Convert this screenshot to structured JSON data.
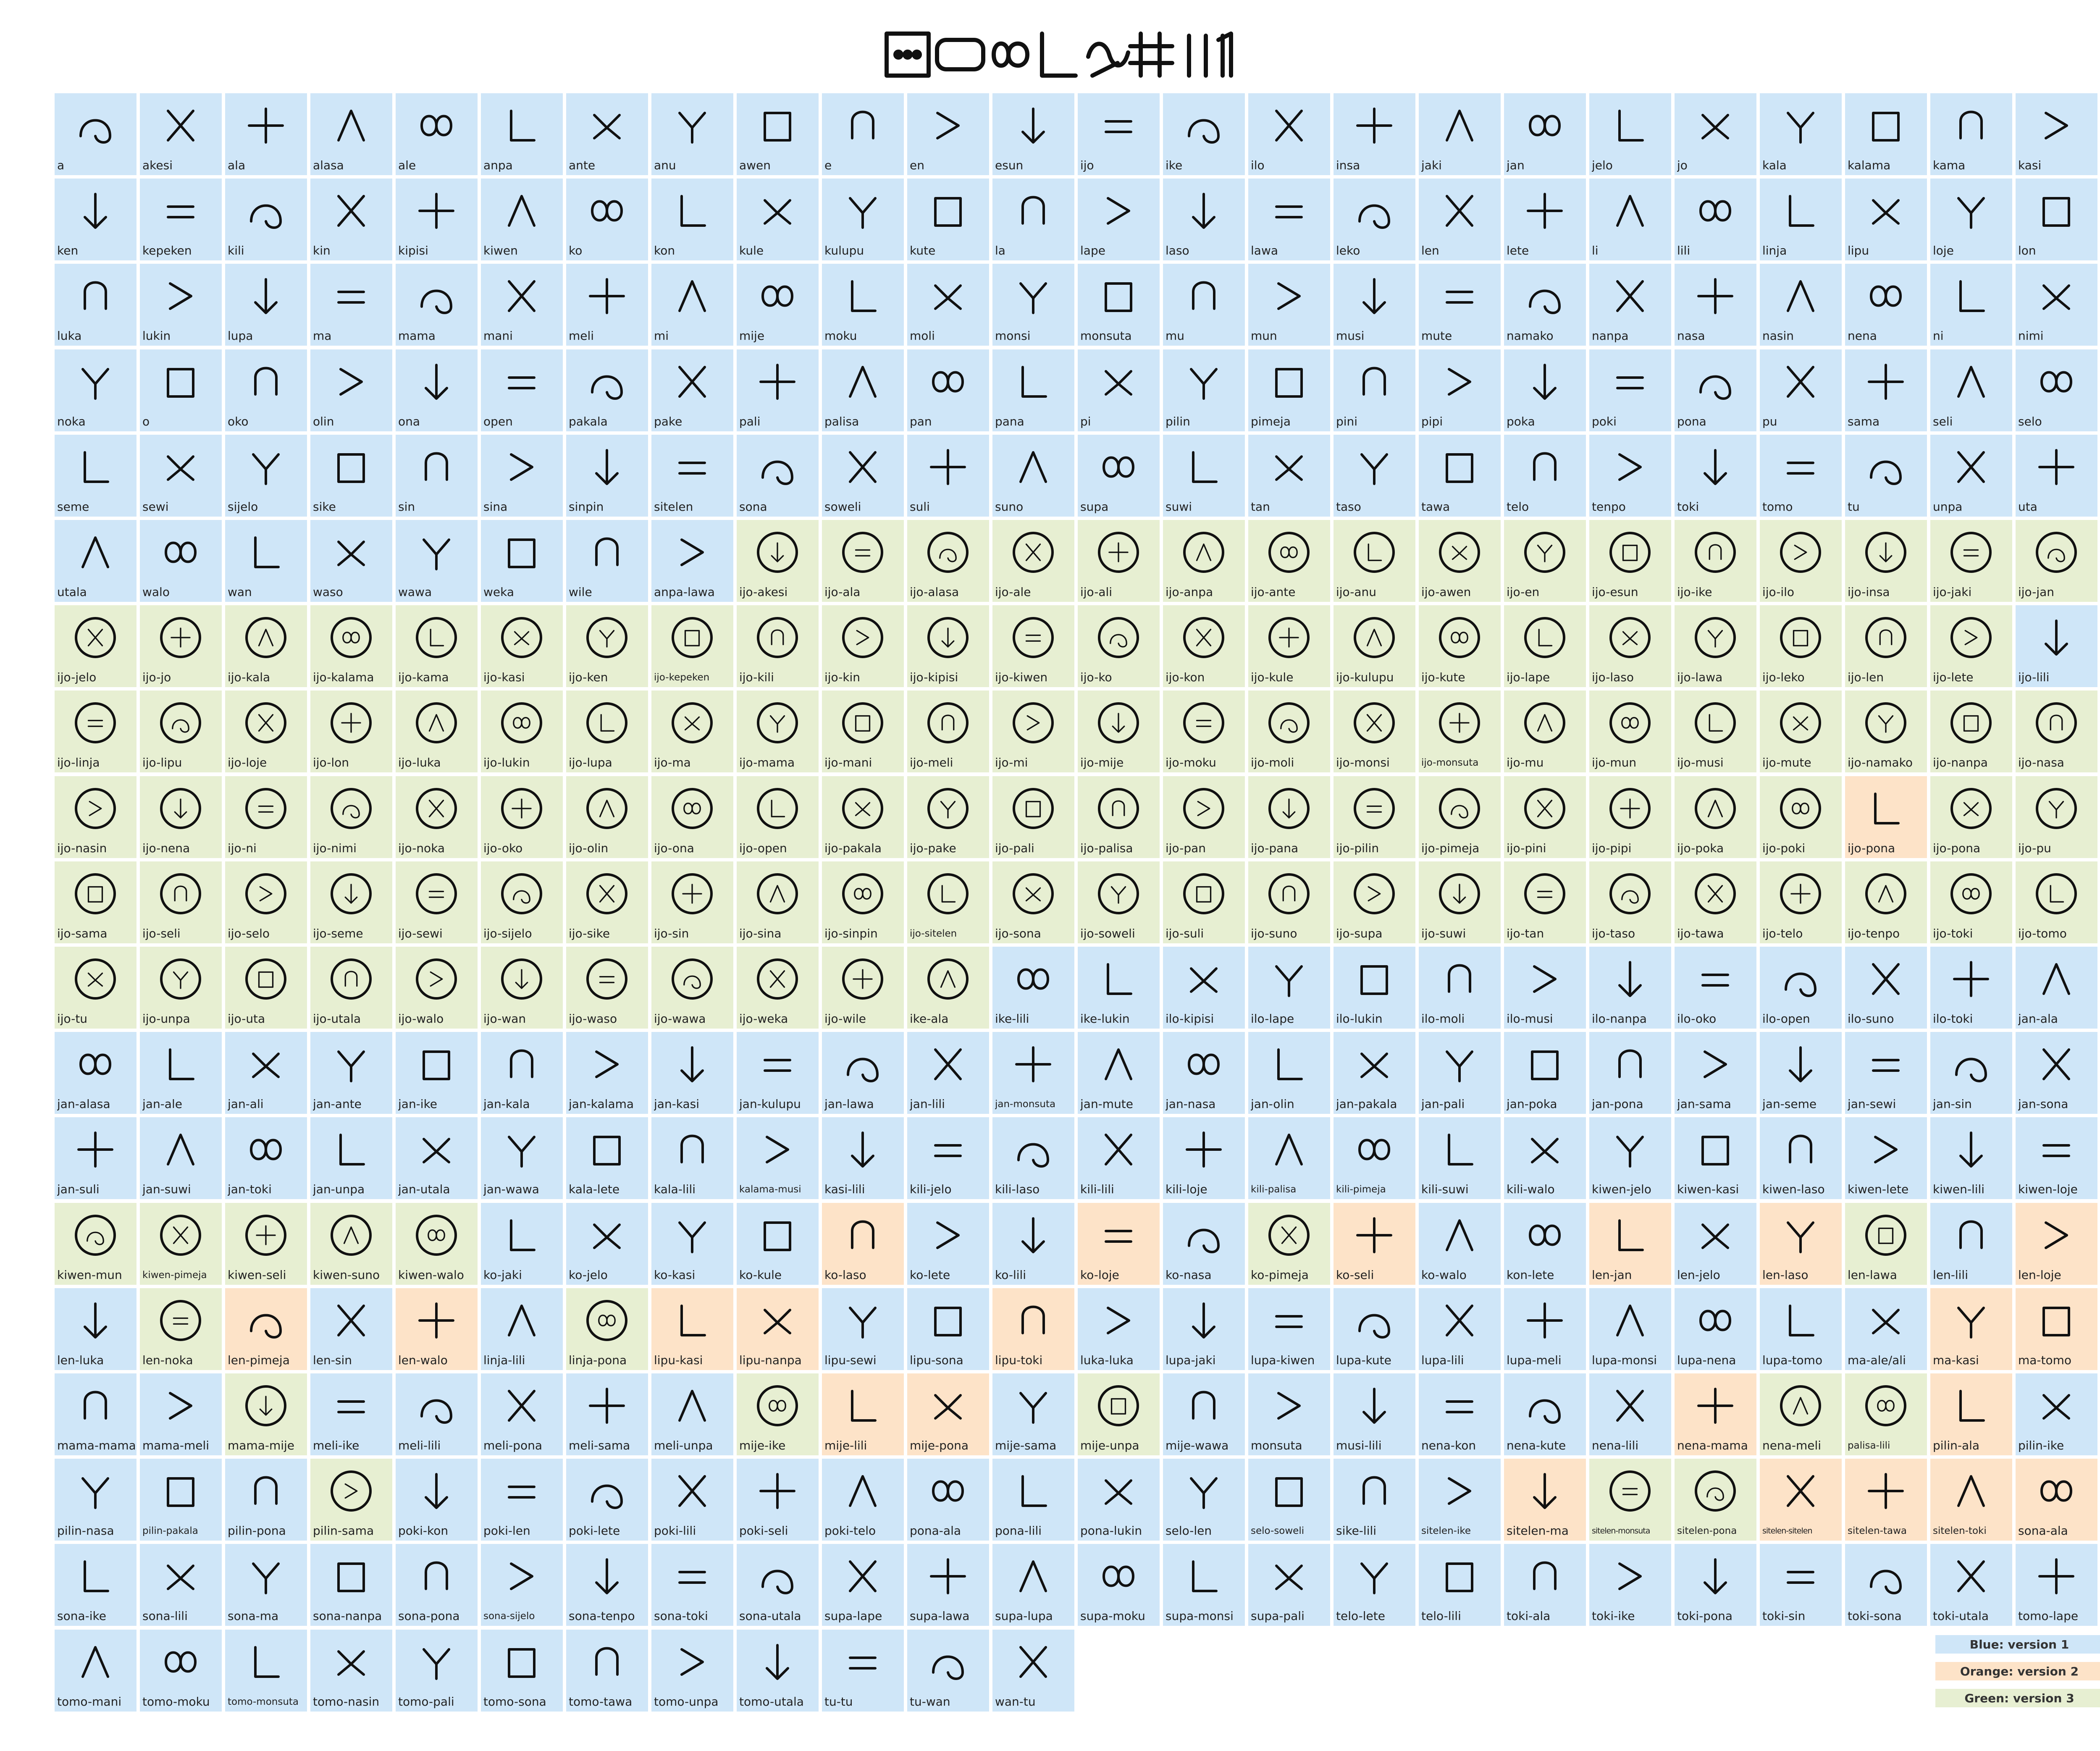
{
  "title_glyph_name": "toki-pona-title-glyphs",
  "colors": {
    "v1": "#cfe6f8",
    "v2": "#fde3c8",
    "v3": "#e7efd2"
  },
  "legend": {
    "blue": "Blue: version 1",
    "orange": "Orange: version 2",
    "green": "Green: version 3"
  },
  "rows": [
    [
      "a",
      "akesi",
      "ala",
      "alasa",
      "ale",
      "anpa",
      "ante",
      "anu",
      "awen",
      "e",
      "en",
      "esun",
      "ijo",
      "ike",
      "ilo",
      "insa",
      "jaki",
      "jan",
      "jelo",
      "jo",
      "kala",
      "kalama",
      "kama",
      "kasi"
    ],
    [
      "ken",
      "kepeken",
      "kili",
      "kin",
      "kipisi",
      "kiwen",
      "ko",
      "kon",
      "kule",
      "kulupu",
      "kute",
      "la",
      "lape",
      "laso",
      "lawa",
      "leko",
      "len",
      "lete",
      "li",
      "lili",
      "linja",
      "lipu",
      "loje",
      "lon"
    ],
    [
      "luka",
      "lukin",
      "lupa",
      "ma",
      "mama",
      "mani",
      "meli",
      "mi",
      "mije",
      "moku",
      "moli",
      "monsi",
      "monsuta",
      "mu",
      "mun",
      "musi",
      "mute",
      "namako",
      "nanpa",
      "nasa",
      "nasin",
      "nena",
      "ni",
      "nimi"
    ],
    [
      "noka",
      "o",
      "oko",
      "olin",
      "ona",
      "open",
      "pakala",
      "pake",
      "pali",
      "palisa",
      "pan",
      "pana",
      "pi",
      "pilin",
      "pimeja",
      "pini",
      "pipi",
      "poka",
      "poki",
      "pona",
      "pu",
      "sama",
      "seli",
      "selo"
    ],
    [
      "seme",
      "sewi",
      "sijelo",
      "sike",
      "sin",
      "sina",
      "sinpin",
      "sitelen",
      "sona",
      "soweli",
      "suli",
      "suno",
      "supa",
      "suwi",
      "tan",
      "taso",
      "tawa",
      "telo",
      "tenpo",
      "toki",
      "tomo",
      "tu",
      "unpa",
      "uta"
    ],
    [
      "utala",
      "walo",
      "wan",
      "waso",
      "wawa",
      "weka",
      "wile",
      "anpa-lawa",
      "ijo-akesi",
      "ijo-ala",
      "ijo-alasa",
      "ijo-ale",
      "ijo-ali",
      "ijo-anpa",
      "ijo-ante",
      "ijo-anu",
      "ijo-awen",
      "ijo-en",
      "ijo-esun",
      "ijo-ike",
      "ijo-ilo",
      "ijo-insa",
      "ijo-jaki",
      "ijo-jan"
    ],
    [
      "ijo-jelo",
      "ijo-jo",
      "ijo-kala",
      "ijo-kalama",
      "ijo-kama",
      "ijo-kasi",
      "ijo-ken",
      "ijo-kepeken",
      "ijo-kili",
      "ijo-kin",
      "ijo-kipisi",
      "ijo-kiwen",
      "ijo-ko",
      "ijo-kon",
      "ijo-kule",
      "ijo-kulupu",
      "ijo-kute",
      "ijo-lape",
      "ijo-laso",
      "ijo-lawa",
      "ijo-leko",
      "ijo-len",
      "ijo-lete",
      "ijo-lili"
    ],
    [
      "ijo-linja",
      "ijo-lipu",
      "ijo-loje",
      "ijo-lon",
      "ijo-luka",
      "ijo-lukin",
      "ijo-lupa",
      "ijo-ma",
      "ijo-mama",
      "ijo-mani",
      "ijo-meli",
      "ijo-mi",
      "ijo-mije",
      "ijo-moku",
      "ijo-moli",
      "ijo-monsi",
      "ijo-monsuta",
      "ijo-mu",
      "ijo-mun",
      "ijo-musi",
      "ijo-mute",
      "ijo-namako",
      "ijo-nanpa",
      "ijo-nasa"
    ],
    [
      "ijo-nasin",
      "ijo-nena",
      "ijo-ni",
      "ijo-nimi",
      "ijo-noka",
      "ijo-oko",
      "ijo-olin",
      "ijo-ona",
      "ijo-open",
      "ijo-pakala",
      "ijo-pake",
      "ijo-pali",
      "ijo-palisa",
      "ijo-pan",
      "ijo-pana",
      "ijo-pilin",
      "ijo-pimeja",
      "ijo-pini",
      "ijo-pipi",
      "ijo-poka",
      "ijo-poki",
      "ijo-pona",
      "ijo-pona",
      "ijo-pu"
    ],
    [
      "ijo-sama",
      "ijo-seli",
      "ijo-selo",
      "ijo-seme",
      "ijo-sewi",
      "ijo-sijelo",
      "ijo-sike",
      "ijo-sin",
      "ijo-sina",
      "ijo-sinpin",
      "ijo-sitelen",
      "ijo-sona",
      "ijo-soweli",
      "ijo-suli",
      "ijo-suno",
      "ijo-supa",
      "ijo-suwi",
      "ijo-tan",
      "ijo-taso",
      "ijo-tawa",
      "ijo-telo",
      "ijo-tenpo",
      "ijo-toki",
      "ijo-tomo"
    ],
    [
      "ijo-tu",
      "ijo-unpa",
      "ijo-uta",
      "ijo-utala",
      "ijo-walo",
      "ijo-wan",
      "ijo-waso",
      "ijo-wawa",
      "ijo-weka",
      "ijo-wile",
      "ike-ala",
      "ike-lili",
      "ike-lukin",
      "ilo-kipisi",
      "ilo-lape",
      "ilo-lukin",
      "ilo-moli",
      "ilo-musi",
      "ilo-nanpa",
      "ilo-oko",
      "ilo-open",
      "ilo-suno",
      "ilo-toki",
      "jan-ala"
    ],
    [
      "jan-alasa",
      "jan-ale",
      "jan-ali",
      "jan-ante",
      "jan-ike",
      "jan-kala",
      "jan-kalama",
      "jan-kasi",
      "jan-kulupu",
      "jan-lawa",
      "jan-lili",
      "jan-monsuta",
      "jan-mute",
      "jan-nasa",
      "jan-olin",
      "jan-pakala",
      "jan-pali",
      "jan-poka",
      "jan-pona",
      "jan-sama",
      "jan-seme",
      "jan-sewi",
      "jan-sin",
      "jan-sona"
    ],
    [
      "jan-suli",
      "jan-suwi",
      "jan-toki",
      "jan-unpa",
      "jan-utala",
      "jan-wawa",
      "kala-lete",
      "kala-lili",
      "kalama-musi",
      "kasi-lili",
      "kili-jelo",
      "kili-laso",
      "kili-lili",
      "kili-loje",
      "kili-palisa",
      "kili-pimeja",
      "kili-suwi",
      "kili-walo",
      "kiwen-jelo",
      "kiwen-kasi",
      "kiwen-laso",
      "kiwen-lete",
      "kiwen-lili",
      "kiwen-loje"
    ],
    [
      "kiwen-mun",
      "kiwen-pimeja",
      "kiwen-seli",
      "kiwen-suno",
      "kiwen-walo",
      "ko-jaki",
      "ko-jelo",
      "ko-kasi",
      "ko-kule",
      "ko-laso",
      "ko-lete",
      "ko-lili",
      "ko-loje",
      "ko-nasa",
      "ko-pimeja",
      "ko-seli",
      "ko-walo",
      "kon-lete",
      "len-jan",
      "len-jelo",
      "len-laso",
      "len-lawa",
      "len-lili",
      "len-loje"
    ],
    [
      "len-luka",
      "len-noka",
      "len-pimeja",
      "len-sin",
      "len-walo",
      "linja-lili",
      "linja-pona",
      "lipu-kasi",
      "lipu-nanpa",
      "lipu-sewi",
      "lipu-sona",
      "lipu-toki",
      "luka-luka",
      "lupa-jaki",
      "lupa-kiwen",
      "lupa-kute",
      "lupa-lili",
      "lupa-meli",
      "lupa-monsi",
      "lupa-nena",
      "lupa-tomo",
      "ma-ale/ali",
      "ma-kasi",
      "ma-tomo"
    ],
    [
      "mama-mama",
      "mama-meli",
      "mama-mije",
      "meli-ike",
      "meli-lili",
      "meli-pona",
      "meli-sama",
      "meli-unpa",
      "mije-ike",
      "mije-lili",
      "mije-pona",
      "mije-sama",
      "mije-unpa",
      "mije-wawa",
      "monsuta",
      "musi-lili",
      "nena-kon",
      "nena-kute",
      "nena-lili",
      "nena-mama",
      "nena-meli",
      "palisa-lili",
      "pilin-ala",
      "pilin-ike"
    ],
    [
      "pilin-nasa",
      "pilin-pakala",
      "pilin-pona",
      "pilin-sama",
      "poki-kon",
      "poki-len",
      "poki-lete",
      "poki-lili",
      "poki-seli",
      "poki-telo",
      "pona-ala",
      "pona-lili",
      "pona-lukin",
      "selo-len",
      "selo-soweli",
      "sike-lili",
      "sitelen-ike",
      "sitelen-ma",
      "sitelen-monsuta",
      "sitelen-pona",
      "sitelen-sitelen",
      "sitelen-tawa",
      "sitelen-toki",
      "sona-ala"
    ],
    [
      "sona-ike",
      "sona-lili",
      "sona-ma",
      "sona-nanpa",
      "sona-pona",
      "sona-sijelo",
      "sona-tenpo",
      "sona-toki",
      "sona-utala",
      "supa-lape",
      "supa-lawa",
      "supa-lupa",
      "supa-moku",
      "supa-monsi",
      "supa-pali",
      "telo-lete",
      "telo-lili",
      "toki-ala",
      "toki-ike",
      "toki-pona",
      "toki-sin",
      "toki-sona",
      "toki-utala",
      "tomo-lape"
    ],
    [
      "tomo-mani",
      "tomo-moku",
      "tomo-monsuta",
      "tomo-nasin",
      "tomo-pali",
      "tomo-sona",
      "tomo-tawa",
      "tomo-unpa",
      "tomo-utala",
      "tu-tu",
      "tu-wan",
      "wan-tu"
    ]
  ],
  "versions": [
    "111111111111111111111111",
    "111111111111111111111111",
    "111111111111111111111111",
    "111111111111111111111111",
    "111111111111111111111111",
    "111111113333333333333333",
    "333333333333333333333331",
    "333333333333333333333333",
    "333333333333333333333233",
    "333333333333333333333333",
    "333333333331111111111111",
    "111111111111111111111111",
    "111111111111111111111111",
    "333331111211213211212312",
    "132121322112111111111122",
    "113111113221311111123321",
    "111311111111111112332222",
    "111111111111111111111111",
    "111111111111"
  ]
}
